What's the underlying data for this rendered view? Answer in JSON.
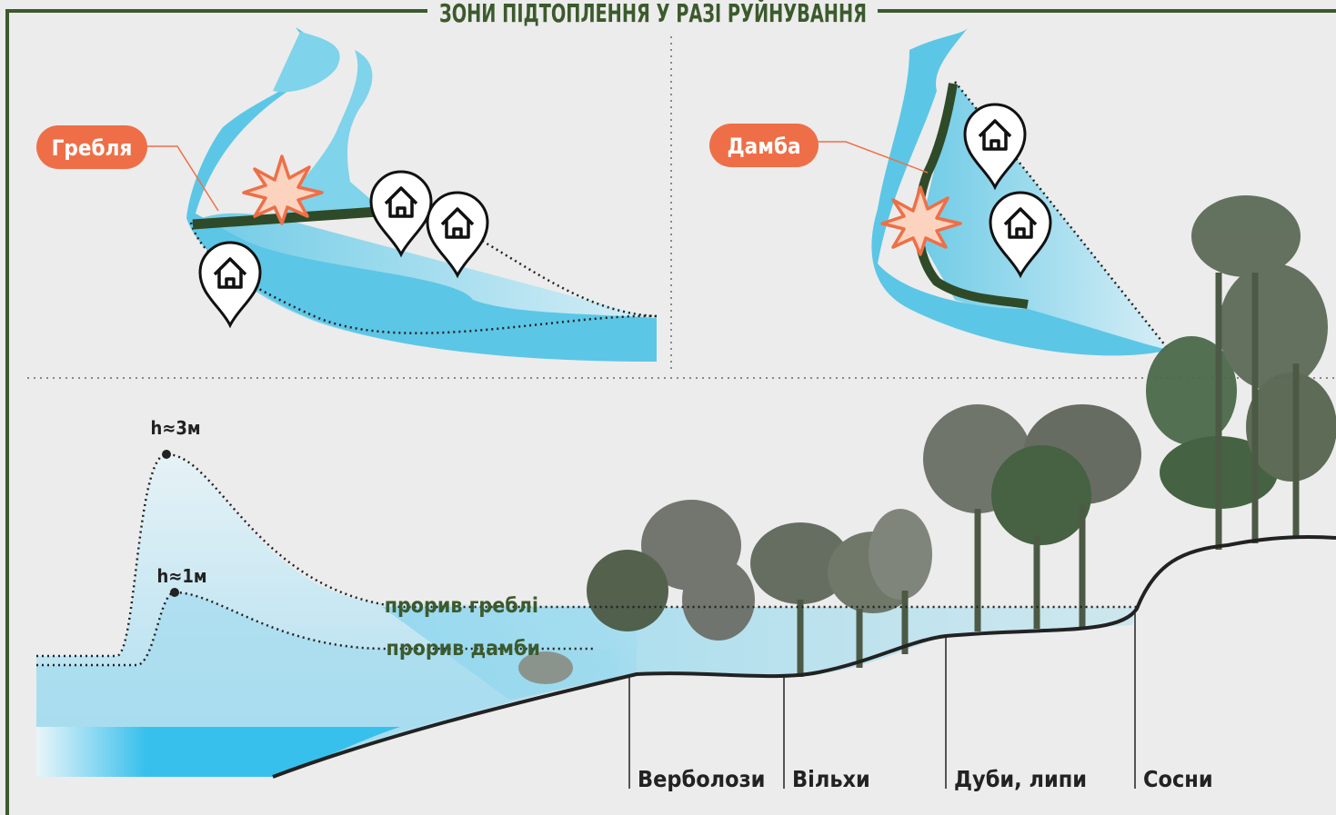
{
  "title": "ЗОНИ ПІДТОПЛЕННЯ  У РАЗІ РУЙНУВАННЯ",
  "top_left": {
    "label": "Гребля"
  },
  "top_right": {
    "label": "Дамба"
  },
  "profile": {
    "wave_high": "h≈3м",
    "wave_low": "h≈1м",
    "level_high": "прорив греблі",
    "level_low": "прорив дамби",
    "zones": [
      "Верболози",
      "Вільхи",
      "Дуби, липи",
      "Сосни"
    ]
  }
}
